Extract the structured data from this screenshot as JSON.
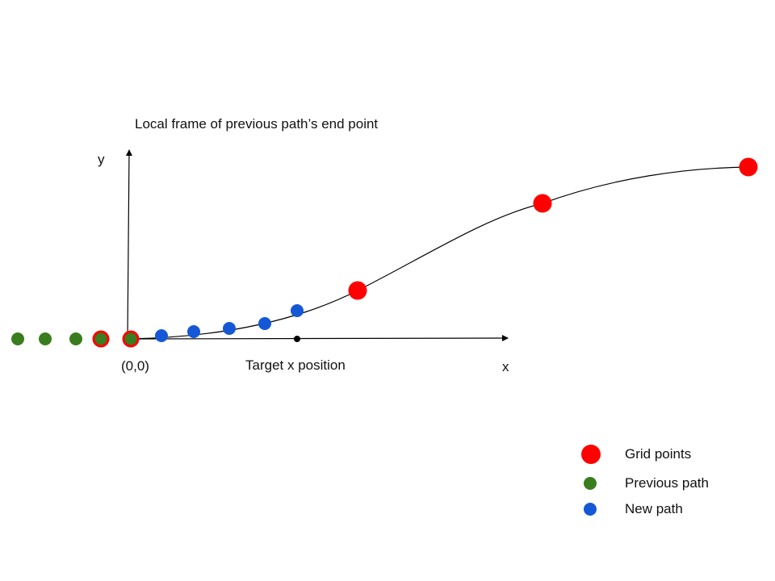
{
  "title": "Local frame of previous path’s end point",
  "axes": {
    "x_label": "x",
    "y_label": "y",
    "origin_label": "(0,0)",
    "target_label": "Target x position"
  },
  "legend": {
    "grid_points": "Grid points",
    "previous_path": "Previous path",
    "new_path": "New path"
  },
  "colors": {
    "grid_point": "#ff0000",
    "previous_path": "#3a7d1e",
    "new_path": "#1558d6",
    "line": "#000000"
  }
}
